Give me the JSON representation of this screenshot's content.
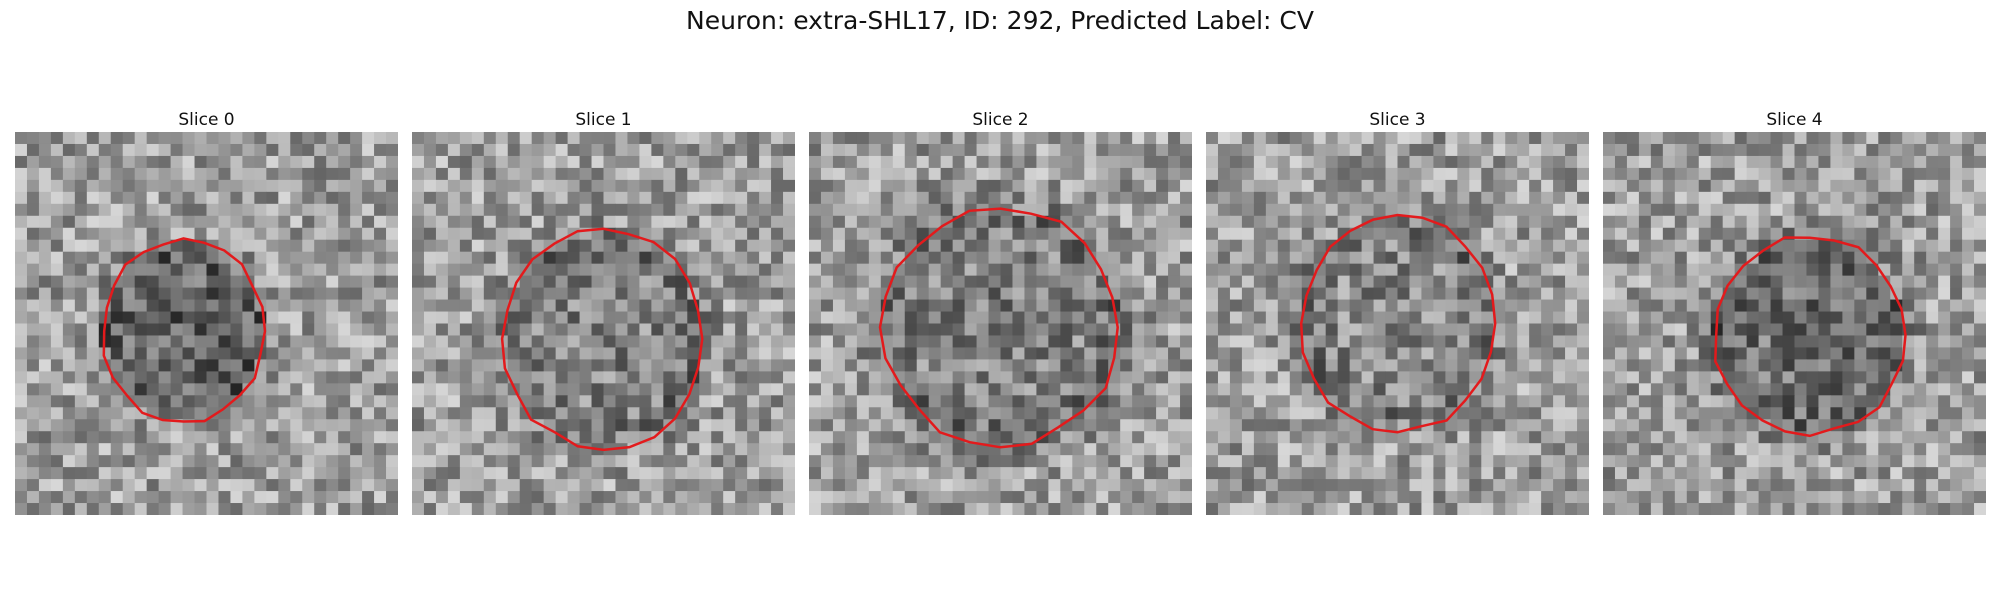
{
  "figure": {
    "title": "Neuron: extra-SHL17, ID: 292, Predicted Label: CV",
    "outline_color": "#e31a1c"
  },
  "panels": [
    {
      "title": "Slice 0",
      "center": [
        0.44,
        0.52
      ],
      "radii": [
        0.42,
        0.48
      ],
      "dark": 0.8,
      "seed": 11
    },
    {
      "title": "Slice 1",
      "center": [
        0.5,
        0.54
      ],
      "radii": [
        0.52,
        0.58
      ],
      "dark": 0.35,
      "seed": 23
    },
    {
      "title": "Slice 2",
      "center": [
        0.5,
        0.51
      ],
      "radii": [
        0.62,
        0.62
      ],
      "dark": 0.4,
      "seed": 37
    },
    {
      "title": "Slice 3",
      "center": [
        0.5,
        0.5
      ],
      "radii": [
        0.5,
        0.57
      ],
      "dark": 0.3,
      "seed": 41
    },
    {
      "title": "Slice 4",
      "center": [
        0.54,
        0.53
      ],
      "radii": [
        0.5,
        0.52
      ],
      "dark": 0.65,
      "seed": 53
    }
  ]
}
